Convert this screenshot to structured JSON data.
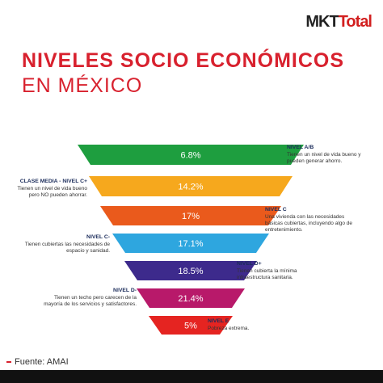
{
  "logo": {
    "part1": "MKT",
    "part2": "Total"
  },
  "title": {
    "line1": "NIVELES SOCIO ECONÓMICOS",
    "line2": "EN MÉXICO"
  },
  "levels": [
    {
      "name": "NIVEL A/B",
      "pct": "6.8%",
      "desc": "Tienen un nivel de vida bueno y pueden generar ahorro.",
      "color": "#1e9e3f"
    },
    {
      "name": "CLASE MEDIA - NIVEL C+",
      "pct": "14.2%",
      "desc": "Tienen un nivel de vida bueno pero NO pueden ahorrar.",
      "color": "#f6a81d"
    },
    {
      "name": "NIVEL C",
      "pct": "17%",
      "desc": "Una vivienda con las necesidades básicas cubiertas, incluyendo algo de entretenimiento.",
      "color": "#ea5a1c"
    },
    {
      "name": "NIVEL C-",
      "pct": "17.1%",
      "desc": "Tienen cubiertas las necesidades de espacio y sanidad.",
      "color": "#2ea6df"
    },
    {
      "name": "NIVEL D+",
      "pct": "18.5%",
      "desc": "Tienen cubierta la mínima infraestructura sanitaria.",
      "color": "#3d2a8c"
    },
    {
      "name": "NIVEL D-",
      "pct": "21.4%",
      "desc": "Tienen un techo pero carecen de la mayoría de los servicios y satisfactores.",
      "color": "#b8196a"
    },
    {
      "name": "NIVEL E",
      "pct": "5%",
      "desc": "Pobreza extrema.",
      "color": "#e52421"
    }
  ],
  "source": "Fuente: AMAI",
  "colors": {
    "title": "#d8212e",
    "label": "#1a2b5a"
  }
}
